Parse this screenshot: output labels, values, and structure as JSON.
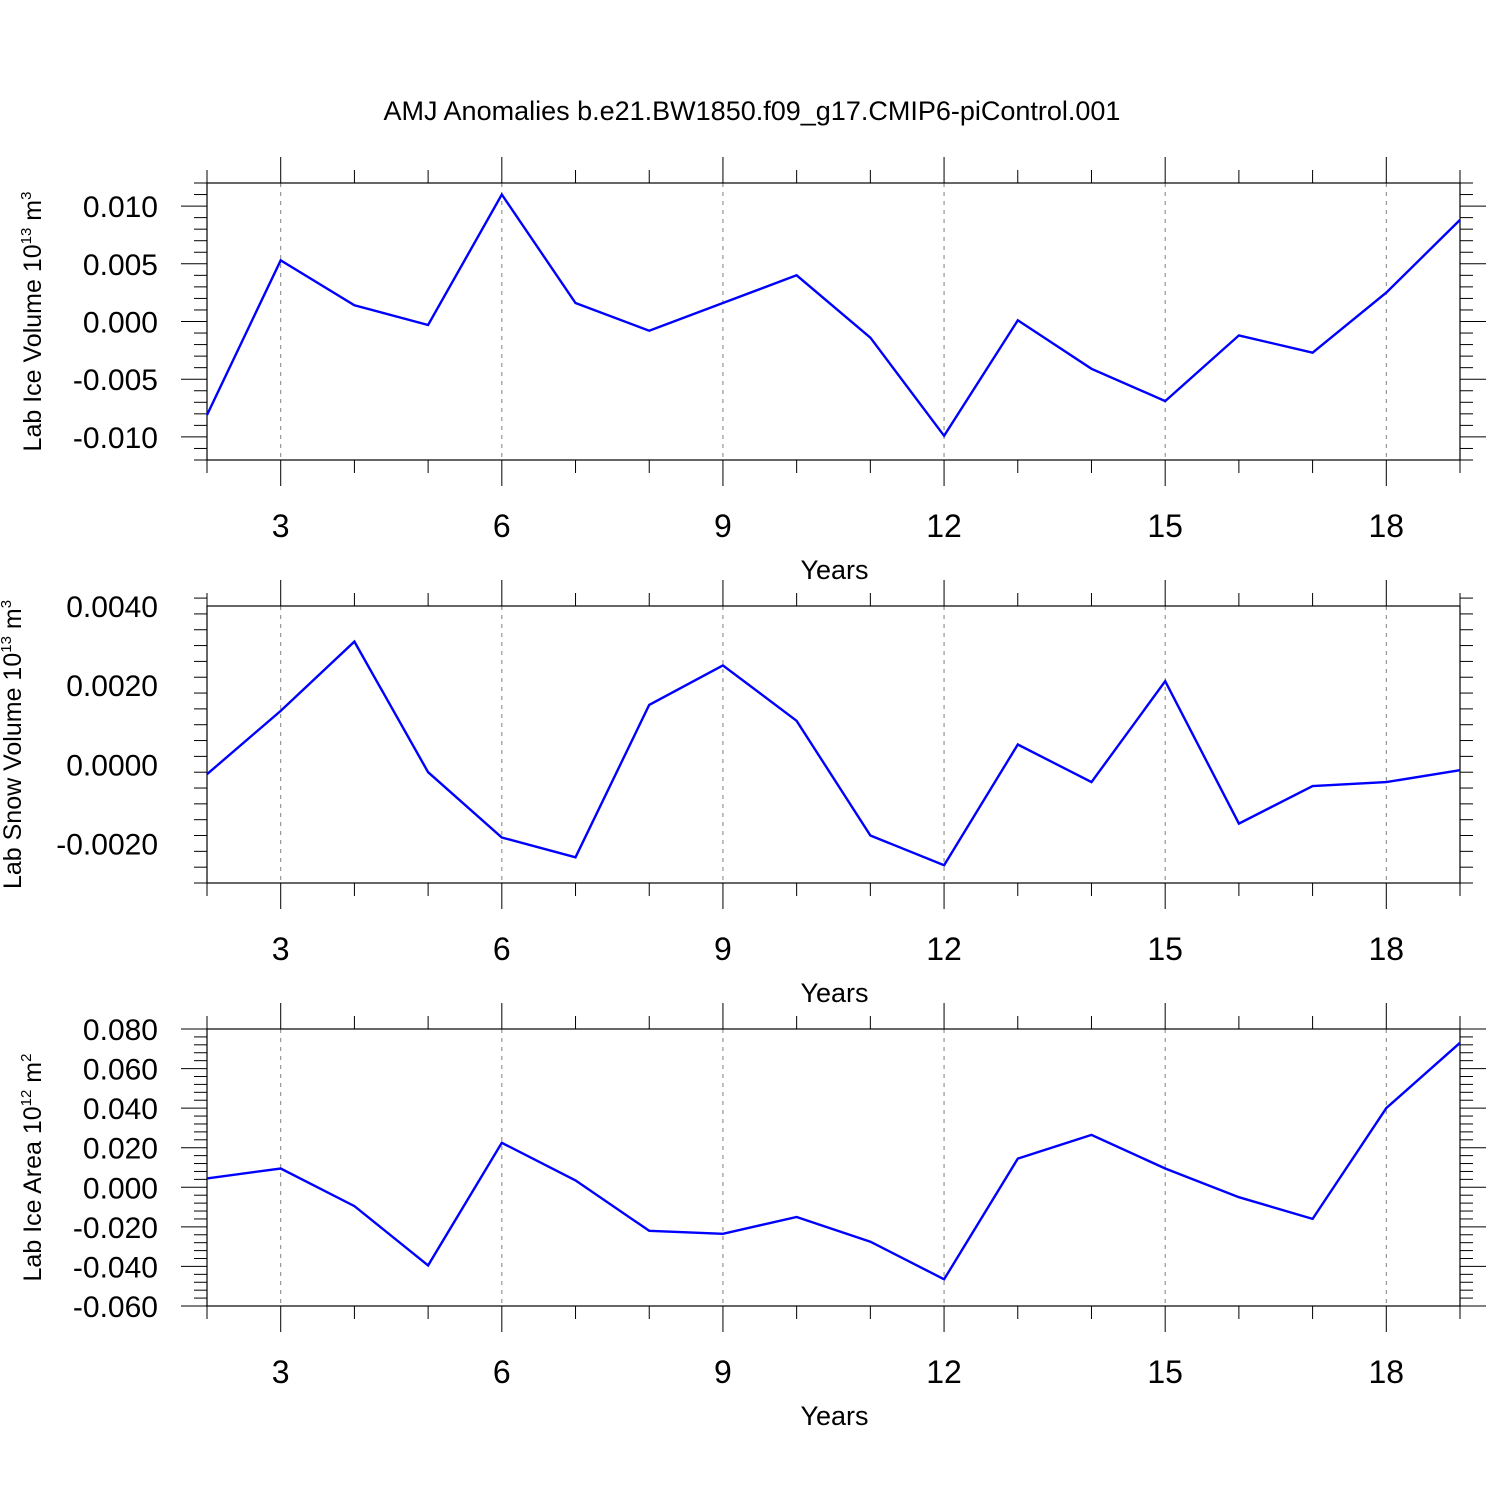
{
  "figure_title": "AMJ Anomalies b.e21.BW1850.f09_g17.CMIP6-piControl.001",
  "style": {
    "line_color": "#0000ff",
    "axis_color": "#000000",
    "grid_color": "#808080"
  },
  "chart_data": [
    {
      "type": "line",
      "title": "",
      "xlabel": "Years",
      "ylabel": {
        "main": "Lab Ice Volume 10",
        "exponent": "13",
        "unit": " m",
        "unit_exponent": "3"
      },
      "xlim": [
        2,
        19
      ],
      "ylim": [
        -0.012,
        0.012
      ],
      "x_ticks": [
        3,
        6,
        9,
        12,
        15,
        18
      ],
      "y_ticks": [
        -0.01,
        -0.005,
        0.0,
        0.005,
        0.01
      ],
      "y_tick_labels": [
        "-0.010",
        "-0.005",
        "0.000",
        "0.005",
        "0.010"
      ],
      "x_grid": "dashed at major ticks",
      "series": [
        {
          "x": [
            2,
            3,
            4,
            5,
            6,
            7,
            8,
            9,
            10,
            11,
            12,
            13,
            14,
            15,
            16,
            17,
            18,
            19
          ],
          "values": [
            -0.0081,
            0.0053,
            0.0014,
            -0.0003,
            0.011,
            0.0016,
            -0.0008,
            0.0016,
            0.004,
            -0.0014,
            -0.0099,
            0.0001,
            -0.0041,
            -0.0069,
            -0.0012,
            -0.0027,
            0.0025,
            0.0088
          ]
        }
      ]
    },
    {
      "type": "line",
      "title": "",
      "xlabel": "Years",
      "ylabel": {
        "main": "Lab Snow Volume 10",
        "exponent": "13",
        "unit": " m",
        "unit_exponent": "3"
      },
      "xlim": [
        2,
        19
      ],
      "ylim": [
        -0.003,
        0.004
      ],
      "x_ticks": [
        3,
        6,
        9,
        12,
        15,
        18
      ],
      "y_ticks": [
        -0.002,
        0.0,
        0.002,
        0.004
      ],
      "y_tick_labels": [
        "-0.0020",
        "0.0000",
        "0.0020",
        "0.0040"
      ],
      "x_grid": "dashed at major ticks",
      "series": [
        {
          "x": [
            2,
            3,
            4,
            5,
            6,
            7,
            8,
            9,
            10,
            11,
            12,
            13,
            14,
            15,
            16,
            17,
            18,
            19
          ],
          "values": [
            -0.00025,
            0.00135,
            0.0031,
            -0.0002,
            -0.00185,
            -0.00235,
            0.0015,
            0.0025,
            0.0011,
            -0.0018,
            -0.00255,
            0.0005,
            -0.00045,
            0.0021,
            -0.0015,
            -0.00055,
            -0.00045,
            -0.00015
          ]
        }
      ]
    },
    {
      "type": "line",
      "title": "",
      "xlabel": "Years",
      "ylabel": {
        "main": "Lab Ice Area 10",
        "exponent": "12",
        "unit": " m",
        "unit_exponent": "2"
      },
      "xlim": [
        2,
        19
      ],
      "ylim": [
        -0.06,
        0.08
      ],
      "x_ticks": [
        3,
        6,
        9,
        12,
        15,
        18
      ],
      "y_ticks": [
        -0.06,
        -0.04,
        -0.02,
        0.0,
        0.02,
        0.04,
        0.06,
        0.08
      ],
      "y_tick_labels": [
        "-0.060",
        "-0.040",
        "-0.020",
        "0.000",
        "0.020",
        "0.040",
        "0.060",
        "0.080"
      ],
      "x_grid": "dashed at major ticks",
      "series": [
        {
          "x": [
            2,
            3,
            4,
            5,
            6,
            7,
            8,
            9,
            10,
            11,
            12,
            13,
            14,
            15,
            16,
            17,
            18,
            19
          ],
          "values": [
            0.0045,
            0.0095,
            -0.0095,
            -0.0395,
            0.0225,
            0.0035,
            -0.022,
            -0.0235,
            -0.015,
            -0.0275,
            -0.0465,
            0.0145,
            0.0265,
            0.0095,
            -0.005,
            -0.016,
            0.04,
            0.073
          ]
        }
      ]
    }
  ]
}
